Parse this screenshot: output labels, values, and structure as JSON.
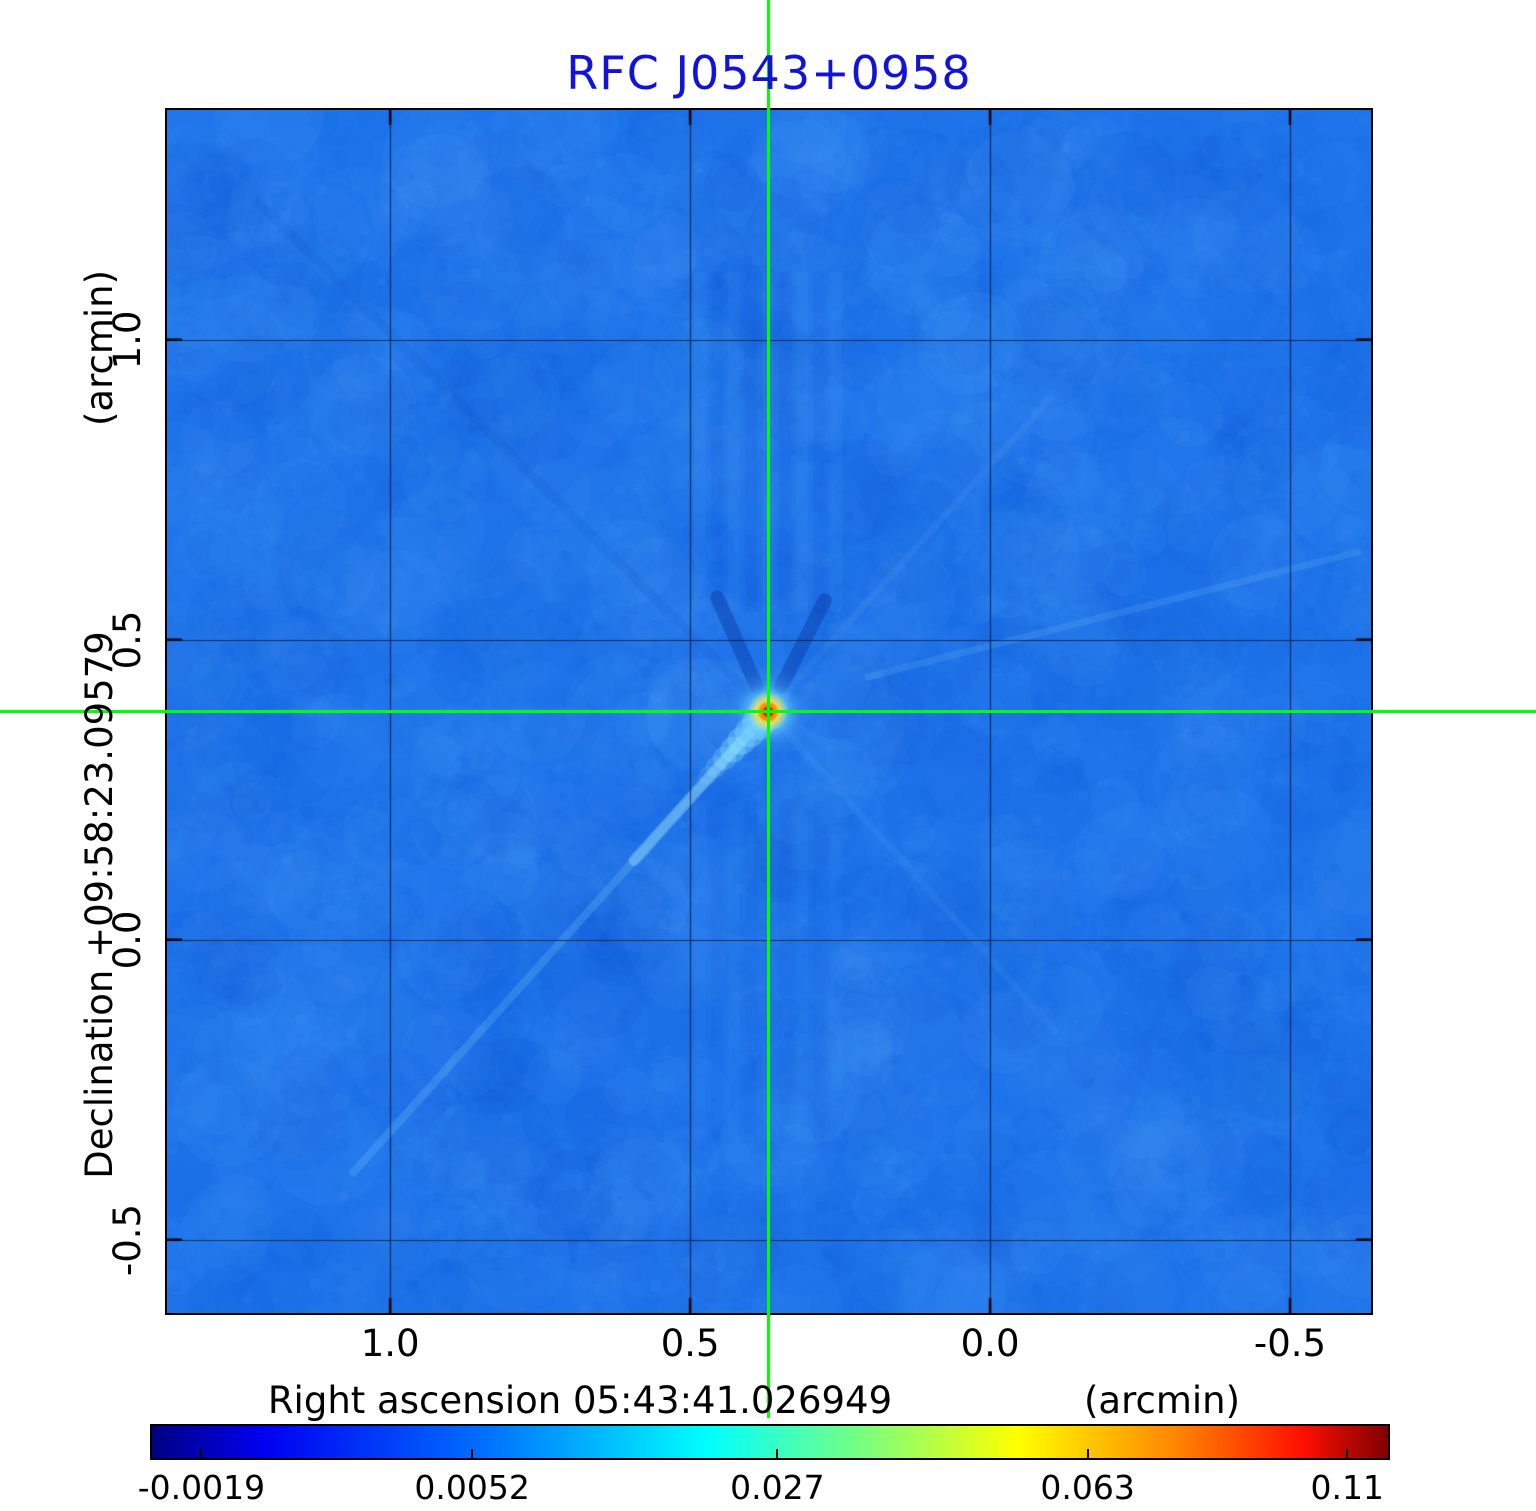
{
  "title": "RFC J0543+0958",
  "y_axis": {
    "unit_label": "(arcmin)",
    "name_label": "Declination  +09:58:23.09579",
    "ticks": [
      "1.0",
      "0.5",
      "0.0",
      "-0.5"
    ]
  },
  "x_axis": {
    "name_label": "Right ascension  05:43:41.026949",
    "unit_label": "(arcmin)",
    "ticks": [
      "1.0",
      "0.5",
      "0.0",
      "-0.5"
    ]
  },
  "colorbar": {
    "tick_labels": [
      "-0.0019",
      "0.0052",
      "0.027",
      "0.063",
      "0.11"
    ],
    "tick_positions": [
      0.04,
      0.259,
      0.506,
      0.757,
      0.967
    ],
    "gradient_css_stops": [
      "#000083 0%",
      "#0000f0 9%",
      "#0070ff 27%",
      "#00ffff 45%",
      "#7dff7a 58%",
      "#ffff00 70%",
      "#ff8400 83%",
      "#ff1000 93%",
      "#800000 100%"
    ]
  },
  "colors": {
    "title_text": "#1212dd",
    "axis_text": "#000000",
    "map_background": "#1e74ea",
    "grid_line": "#000000",
    "crosshair": "#00ff00",
    "frame": "#000000"
  },
  "chart_data": {
    "type": "heatmap",
    "title": "RFC J0543+0958",
    "xlabel": "Right ascension 05:43:41.026949 (arcmin)",
    "ylabel": "Declination +09:58:23.09579 (arcmin)",
    "x_axis_range_arcmin": [
      1.372,
      -0.635
    ],
    "y_axis_range_arcmin": [
      1.383,
      -0.622
    ],
    "x_ticks_arcmin": [
      1.0,
      0.5,
      0.0,
      -0.5
    ],
    "y_ticks_arcmin": [
      1.0,
      0.5,
      0.0,
      -0.5
    ],
    "colormap": "jet",
    "color_scale_values": [
      -0.0019,
      0.0052,
      0.027,
      0.063,
      0.11
    ],
    "background_level": 0.0,
    "peak": {
      "x_arcmin": 0.37,
      "y_arcmin": 0.38,
      "value": 0.11
    },
    "crosshair": {
      "x_arcmin": 0.37,
      "y_arcmin": 0.38,
      "color": "#00ff00"
    },
    "grid": true,
    "features": [
      "compact bright point source at the crosshair position with peak ~0.11",
      "cyan jet-like extension from the peak toward the lower-left",
      "faint diagonal sidelobe streaks radiating from the source",
      "dark sidelobe arms immediately above the source"
    ]
  }
}
